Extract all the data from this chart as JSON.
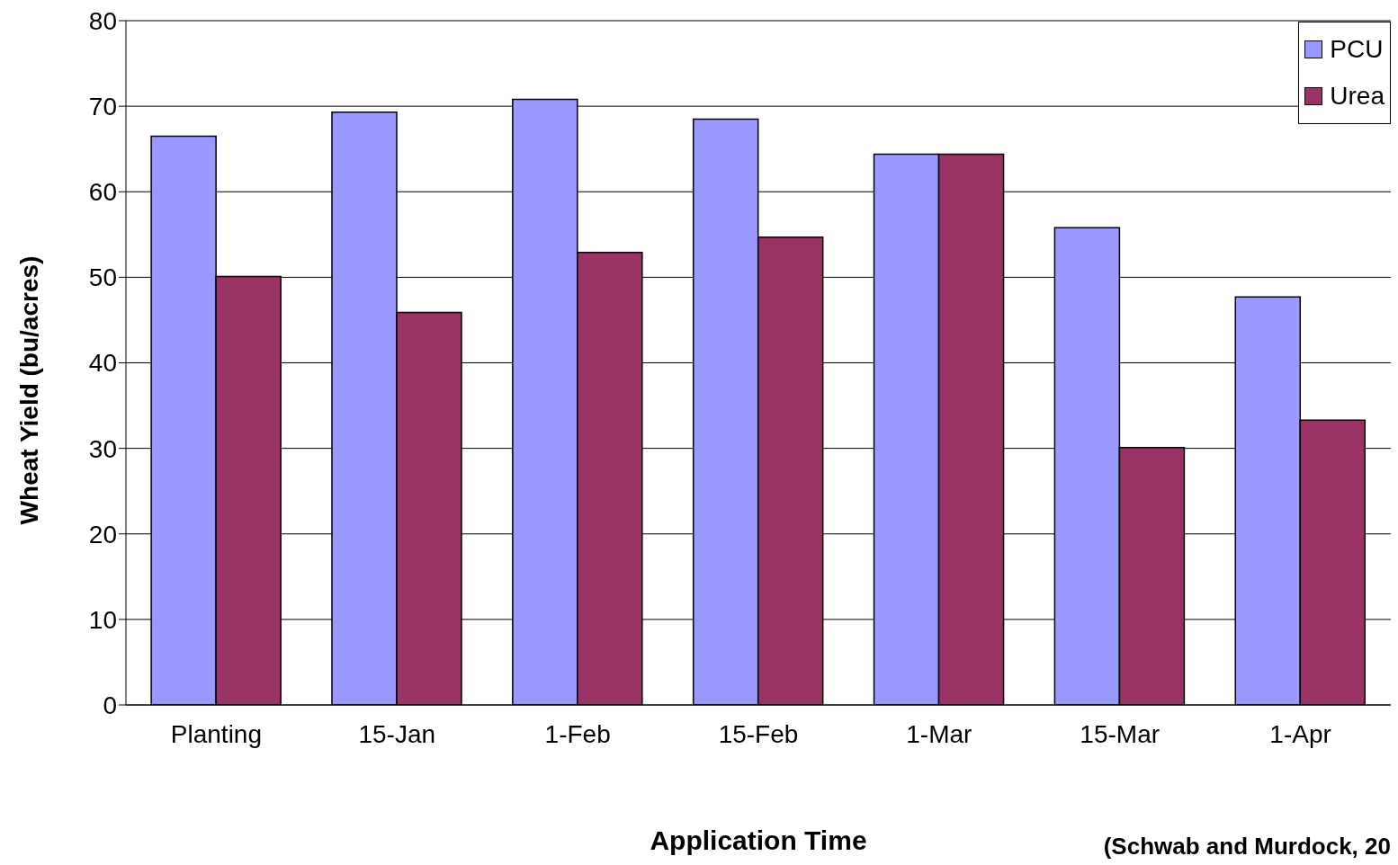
{
  "chart_data": {
    "type": "bar",
    "xlabel": "Application Time",
    "ylabel": "Wheat Yield (bu/acres)",
    "annotations": [
      "(Schwab and Murdock, 20"
    ],
    "categories": [
      "Planting",
      "15-Jan",
      "1-Feb",
      "15-Feb",
      "1-Mar",
      "15-Mar",
      "1-Apr"
    ],
    "series": [
      {
        "name": "PCU",
        "color": "#9999ff",
        "values": [
          66.5,
          69.3,
          70.8,
          68.5,
          64.4,
          55.8,
          47.7
        ]
      },
      {
        "name": "Urea",
        "color": "#993366",
        "values": [
          50.1,
          45.9,
          52.9,
          54.7,
          64.4,
          30.1,
          33.3
        ]
      }
    ],
    "ylim": [
      0,
      80
    ],
    "yticks": [
      0,
      10,
      20,
      30,
      40,
      50,
      60,
      70,
      80
    ],
    "grid": "y",
    "legend": "top right"
  }
}
